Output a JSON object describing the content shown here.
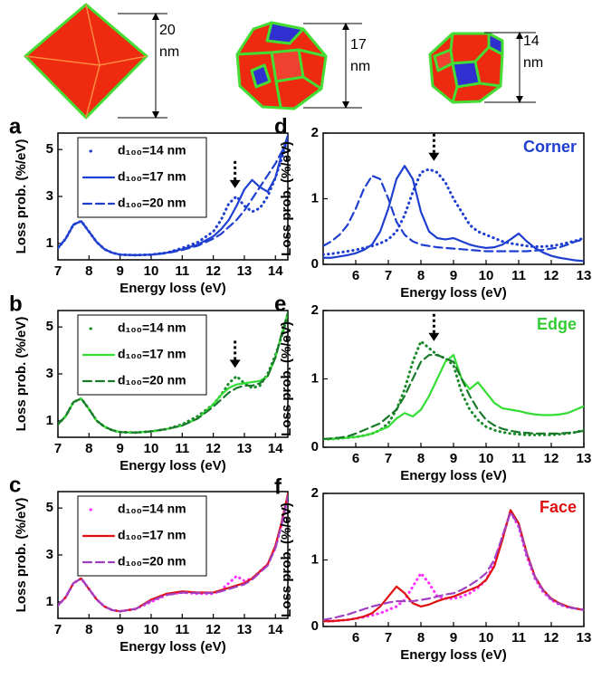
{
  "shapes": [
    {
      "size": "20",
      "unit": "nm"
    },
    {
      "size": "17",
      "unit": "nm"
    },
    {
      "size": "14",
      "unit": "nm"
    }
  ],
  "chart_data": [
    {
      "type": "line",
      "panel": "a",
      "xlabel": "Energy loss (eV)",
      "ylabel": "Loss prob. (%/eV)",
      "x": [
        7,
        7.25,
        7.5,
        7.75,
        8,
        8.25,
        8.5,
        8.75,
        9,
        9.5,
        10,
        10.5,
        11,
        11.5,
        12,
        12.25,
        12.5,
        12.75,
        13,
        13.25,
        13.5,
        13.75,
        14,
        14.2,
        14.4
      ],
      "xlim": [
        7,
        14.4
      ],
      "xticks": [
        7,
        8,
        9,
        10,
        11,
        12,
        13,
        14
      ],
      "ylim": [
        0.3,
        5.7
      ],
      "yticks": [
        1,
        3,
        5
      ],
      "legend": "upper left",
      "arrow": {
        "x": 12.7,
        "y": 3.2
      },
      "series": [
        {
          "name": "d₁₀₀=14 nm",
          "color": "#1f3fd0",
          "style": "dotted",
          "values": [
            0.8,
            1.2,
            1.8,
            1.95,
            1.5,
            1.05,
            0.75,
            0.6,
            0.52,
            0.5,
            0.52,
            0.6,
            0.8,
            1.05,
            1.5,
            2.0,
            2.7,
            3.0,
            2.6,
            2.35,
            2.5,
            3.0,
            3.8,
            4.6,
            5.5
          ]
        },
        {
          "name": "d₁₀₀=17 nm",
          "color": "#1f3fd0",
          "style": "solid",
          "values": [
            0.8,
            1.2,
            1.8,
            1.95,
            1.5,
            1.05,
            0.75,
            0.6,
            0.52,
            0.5,
            0.52,
            0.6,
            0.75,
            0.95,
            1.3,
            1.6,
            2.0,
            2.6,
            3.3,
            3.7,
            3.4,
            3.2,
            3.8,
            4.8,
            5.6
          ]
        },
        {
          "name": "d₁₀₀=20 nm",
          "color": "#1f3fd0",
          "style": "dashed",
          "values": [
            0.8,
            1.2,
            1.8,
            1.95,
            1.5,
            1.05,
            0.75,
            0.6,
            0.52,
            0.5,
            0.52,
            0.58,
            0.72,
            0.9,
            1.2,
            1.4,
            1.7,
            2.0,
            2.4,
            2.9,
            3.4,
            3.9,
            4.4,
            4.9,
            5.4
          ]
        }
      ]
    },
    {
      "type": "line",
      "panel": "b",
      "xlabel": "Energy loss (eV)",
      "ylabel": "Loss prob. (%/eV)",
      "x": [
        7,
        7.25,
        7.5,
        7.75,
        8,
        8.25,
        8.5,
        8.75,
        9,
        9.5,
        10,
        10.5,
        11,
        11.5,
        12,
        12.25,
        12.5,
        12.75,
        13,
        13.25,
        13.5,
        13.75,
        14,
        14.2,
        14.4
      ],
      "xlim": [
        7,
        14.4
      ],
      "xticks": [
        7,
        8,
        9,
        10,
        11,
        12,
        13,
        14
      ],
      "ylim": [
        0.3,
        5.7
      ],
      "yticks": [
        1,
        3,
        5
      ],
      "legend": "upper left",
      "arrow": {
        "x": 12.7,
        "y": 3.1
      },
      "series": [
        {
          "name": "d₁₀₀=14 nm",
          "color": "#1a8a2a",
          "style": "dotted",
          "values": [
            0.85,
            1.2,
            1.8,
            1.95,
            1.5,
            1.0,
            0.75,
            0.6,
            0.52,
            0.5,
            0.55,
            0.65,
            0.85,
            1.2,
            1.7,
            2.1,
            2.6,
            2.9,
            2.6,
            2.4,
            2.5,
            3.0,
            3.8,
            4.6,
            5.5
          ]
        },
        {
          "name": "d₁₀₀=17 nm",
          "color": "#33dd33",
          "style": "solid",
          "values": [
            0.85,
            1.2,
            1.8,
            1.95,
            1.5,
            1.0,
            0.75,
            0.6,
            0.52,
            0.5,
            0.55,
            0.65,
            0.8,
            1.1,
            1.7,
            2.1,
            2.4,
            2.55,
            2.6,
            2.65,
            2.7,
            2.9,
            3.7,
            4.7,
            5.6
          ]
        },
        {
          "name": "d₁₀₀=20 nm",
          "color": "#1a7a2a",
          "style": "dashed",
          "values": [
            0.85,
            1.2,
            1.8,
            1.95,
            1.5,
            1.0,
            0.75,
            0.6,
            0.52,
            0.5,
            0.55,
            0.65,
            0.8,
            1.1,
            1.6,
            1.9,
            2.2,
            2.4,
            2.5,
            2.5,
            2.6,
            2.9,
            3.7,
            4.7,
            5.6
          ]
        }
      ]
    },
    {
      "type": "line",
      "panel": "c",
      "xlabel": "Energy loss (eV)",
      "ylabel": "Loss prob. (%/eV)",
      "x": [
        7,
        7.25,
        7.5,
        7.75,
        8,
        8.25,
        8.5,
        8.75,
        9,
        9.5,
        10,
        10.5,
        11,
        11.5,
        12,
        12.25,
        12.5,
        12.75,
        13,
        13.25,
        13.5,
        13.75,
        14,
        14.2,
        14.4
      ],
      "xlim": [
        7,
        14.4
      ],
      "xticks": [
        7,
        8,
        9,
        10,
        11,
        12,
        13,
        14
      ],
      "ylim": [
        0.3,
        5.7
      ],
      "yticks": [
        1,
        3,
        5
      ],
      "legend": "upper left",
      "series": [
        {
          "name": "d₁₀₀=14 nm",
          "color": "#ff33ff",
          "style": "dotted",
          "values": [
            0.85,
            1.2,
            1.8,
            2.0,
            1.55,
            1.1,
            0.8,
            0.65,
            0.6,
            0.7,
            1.0,
            1.3,
            1.4,
            1.35,
            1.35,
            1.5,
            1.8,
            2.1,
            1.9,
            2.0,
            2.3,
            2.6,
            3.3,
            4.3,
            5.5
          ]
        },
        {
          "name": "d₁₀₀=17 nm",
          "color": "#e01010",
          "style": "solid",
          "values": [
            0.85,
            1.2,
            1.8,
            2.0,
            1.55,
            1.1,
            0.8,
            0.65,
            0.6,
            0.7,
            1.1,
            1.35,
            1.45,
            1.4,
            1.4,
            1.5,
            1.6,
            1.7,
            1.8,
            2.0,
            2.3,
            2.6,
            3.4,
            4.4,
            5.6
          ]
        },
        {
          "name": "d₁₀₀=20 nm",
          "color": "#a040c0",
          "style": "dashed",
          "values": [
            0.85,
            1.2,
            1.8,
            2.0,
            1.55,
            1.1,
            0.8,
            0.65,
            0.6,
            0.7,
            1.05,
            1.3,
            1.4,
            1.38,
            1.38,
            1.45,
            1.55,
            1.65,
            1.75,
            1.95,
            2.25,
            2.55,
            3.3,
            4.3,
            5.5
          ]
        }
      ]
    },
    {
      "type": "line",
      "panel": "d",
      "xlabel": "Energy loss (eV)",
      "ylabel": "Loss prob. (%/eV)",
      "x": [
        5,
        5.25,
        5.5,
        5.75,
        6,
        6.25,
        6.5,
        6.75,
        7,
        7.25,
        7.5,
        7.75,
        8,
        8.25,
        8.5,
        8.75,
        9,
        9.25,
        9.5,
        9.75,
        10,
        10.25,
        10.5,
        10.75,
        11,
        11.25,
        11.5,
        11.75,
        12,
        12.25,
        12.5,
        12.75,
        13
      ],
      "xlim": [
        5,
        13
      ],
      "xticks": [
        6,
        7,
        8,
        9,
        10,
        11,
        12,
        13
      ],
      "ylim": [
        0,
        2
      ],
      "yticks": [
        0,
        1,
        2
      ],
      "annotation": {
        "text": "Corner",
        "color": "#1f3fd0"
      },
      "arrow": {
        "x": 8.4,
        "y": 1.52
      },
      "series": [
        {
          "name": "d₁₀₀=14 nm",
          "color": "#1f3fd0",
          "style": "dotted",
          "values": [
            0.15,
            0.16,
            0.18,
            0.2,
            0.22,
            0.25,
            0.28,
            0.32,
            0.38,
            0.5,
            0.75,
            1.1,
            1.4,
            1.45,
            1.4,
            1.25,
            1.0,
            0.8,
            0.6,
            0.5,
            0.45,
            0.4,
            0.35,
            0.32,
            0.3,
            0.28,
            0.27,
            0.27,
            0.28,
            0.3,
            0.33,
            0.36,
            0.4
          ]
        },
        {
          "name": "d₁₀₀=17 nm",
          "color": "#1f3fd0",
          "style": "solid",
          "values": [
            0.1,
            0.1,
            0.12,
            0.14,
            0.17,
            0.22,
            0.3,
            0.5,
            0.85,
            1.3,
            1.5,
            1.3,
            0.8,
            0.5,
            0.4,
            0.38,
            0.4,
            0.35,
            0.3,
            0.27,
            0.25,
            0.26,
            0.3,
            0.38,
            0.47,
            0.35,
            0.25,
            0.18,
            0.13,
            0.1,
            0.08,
            0.06,
            0.05
          ]
        },
        {
          "name": "d₁₀₀=20 nm",
          "color": "#1f3fd0",
          "style": "dashed",
          "values": [
            0.28,
            0.35,
            0.45,
            0.6,
            0.85,
            1.15,
            1.35,
            1.3,
            1.0,
            0.65,
            0.45,
            0.35,
            0.3,
            0.28,
            0.26,
            0.25,
            0.24,
            0.23,
            0.22,
            0.21,
            0.2,
            0.2,
            0.2,
            0.2,
            0.2,
            0.2,
            0.21,
            0.22,
            0.24,
            0.26,
            0.3,
            0.35,
            0.38
          ]
        }
      ]
    },
    {
      "type": "line",
      "panel": "e",
      "xlabel": "Energy loss (eV)",
      "ylabel": "Loss prob. (%/eV)",
      "x": [
        5,
        5.25,
        5.5,
        5.75,
        6,
        6.25,
        6.5,
        6.75,
        7,
        7.25,
        7.5,
        7.75,
        8,
        8.25,
        8.5,
        8.75,
        9,
        9.25,
        9.5,
        9.75,
        10,
        10.25,
        10.5,
        10.75,
        11,
        11.25,
        11.5,
        11.75,
        12,
        12.25,
        12.5,
        12.75,
        13
      ],
      "xlim": [
        5,
        13
      ],
      "xticks": [
        6,
        7,
        8,
        9,
        10,
        11,
        12,
        13
      ],
      "ylim": [
        0,
        2
      ],
      "yticks": [
        0,
        1,
        2
      ],
      "annotation": {
        "text": "Edge",
        "color": "#33cc33"
      },
      "arrow": {
        "x": 8.4,
        "y": 1.5
      },
      "series": [
        {
          "name": "d₁₀₀=14 nm",
          "color": "#1a8a2a",
          "style": "dotted",
          "values": [
            0.12,
            0.12,
            0.13,
            0.14,
            0.15,
            0.17,
            0.2,
            0.25,
            0.35,
            0.55,
            0.85,
            1.25,
            1.55,
            1.45,
            1.35,
            1.3,
            1.2,
            0.8,
            0.55,
            0.4,
            0.3,
            0.25,
            0.22,
            0.2,
            0.19,
            0.18,
            0.18,
            0.18,
            0.18,
            0.19,
            0.2,
            0.22,
            0.25
          ]
        },
        {
          "name": "d₁₀₀=17 nm",
          "color": "#33dd33",
          "style": "solid",
          "values": [
            0.12,
            0.12,
            0.13,
            0.14,
            0.15,
            0.17,
            0.2,
            0.25,
            0.3,
            0.42,
            0.5,
            0.45,
            0.55,
            0.75,
            1.0,
            1.25,
            1.35,
            1.0,
            0.85,
            0.95,
            0.8,
            0.65,
            0.57,
            0.55,
            0.53,
            0.5,
            0.48,
            0.47,
            0.47,
            0.48,
            0.5,
            0.55,
            0.6
          ]
        },
        {
          "name": "d₁₀₀=20 nm",
          "color": "#1a7a2a",
          "style": "dashed",
          "values": [
            0.12,
            0.13,
            0.14,
            0.16,
            0.2,
            0.25,
            0.3,
            0.35,
            0.45,
            0.55,
            0.75,
            1.0,
            1.25,
            1.35,
            1.35,
            1.3,
            1.25,
            1.0,
            0.75,
            0.55,
            0.4,
            0.32,
            0.27,
            0.24,
            0.22,
            0.21,
            0.2,
            0.2,
            0.2,
            0.2,
            0.21,
            0.22,
            0.24
          ]
        }
      ]
    },
    {
      "type": "line",
      "panel": "f",
      "xlabel": "Energy loss (eV)",
      "ylabel": "Loss prob. (%/eV)",
      "x": [
        5,
        5.25,
        5.5,
        5.75,
        6,
        6.25,
        6.5,
        6.75,
        7,
        7.25,
        7.5,
        7.75,
        8,
        8.25,
        8.5,
        8.75,
        9,
        9.25,
        9.5,
        9.75,
        10,
        10.25,
        10.5,
        10.75,
        11,
        11.25,
        11.5,
        11.75,
        12,
        12.25,
        12.5,
        12.75,
        13
      ],
      "xlim": [
        5,
        13
      ],
      "xticks": [
        6,
        7,
        8,
        9,
        10,
        11,
        12,
        13
      ],
      "ylim": [
        0,
        2
      ],
      "yticks": [
        0,
        1,
        2
      ],
      "annotation": {
        "text": "Face",
        "color": "#e01010"
      },
      "series": [
        {
          "name": "d₁₀₀=14 nm",
          "color": "#ff33ff",
          "style": "dotted",
          "values": [
            0.08,
            0.08,
            0.09,
            0.1,
            0.12,
            0.14,
            0.17,
            0.2,
            0.25,
            0.3,
            0.4,
            0.6,
            0.8,
            0.65,
            0.45,
            0.42,
            0.42,
            0.45,
            0.5,
            0.58,
            0.7,
            0.95,
            1.35,
            1.72,
            1.5,
            1.05,
            0.72,
            0.52,
            0.4,
            0.33,
            0.29,
            0.27,
            0.25
          ]
        },
        {
          "name": "d₁₀₀=17 nm",
          "color": "#e01010",
          "style": "solid",
          "values": [
            0.08,
            0.08,
            0.09,
            0.1,
            0.12,
            0.15,
            0.2,
            0.3,
            0.45,
            0.6,
            0.5,
            0.35,
            0.3,
            0.33,
            0.38,
            0.42,
            0.45,
            0.5,
            0.55,
            0.6,
            0.7,
            0.9,
            1.3,
            1.75,
            1.55,
            1.1,
            0.75,
            0.55,
            0.42,
            0.35,
            0.3,
            0.27,
            0.25
          ]
        },
        {
          "name": "d₁₀₀=20 nm",
          "color": "#a040c0",
          "style": "dashed",
          "values": [
            0.1,
            0.12,
            0.15,
            0.18,
            0.22,
            0.26,
            0.3,
            0.33,
            0.36,
            0.38,
            0.38,
            0.38,
            0.4,
            0.42,
            0.45,
            0.48,
            0.5,
            0.55,
            0.62,
            0.7,
            0.8,
            1.0,
            1.35,
            1.72,
            1.52,
            1.08,
            0.74,
            0.54,
            0.41,
            0.34,
            0.29,
            0.27,
            0.25
          ]
        }
      ]
    }
  ]
}
